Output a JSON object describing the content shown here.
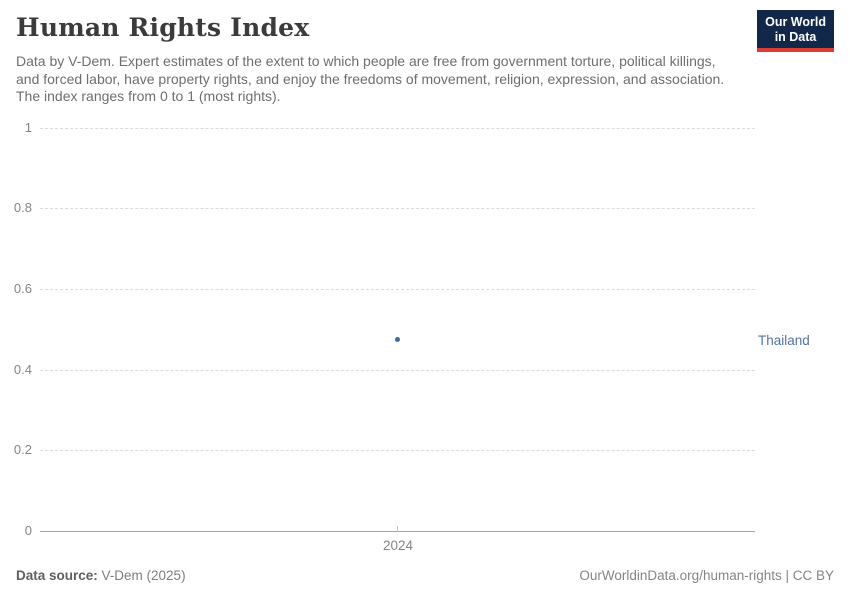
{
  "header": {
    "title": "Human Rights Index",
    "subtitle": "Data by V-Dem. Expert estimates of the extent to which people are free from government torture, political killings, and forced labor, have property rights, and enjoy the freedoms of movement, religion, expression, and association. The index ranges from 0 to 1 (most rights).",
    "logo": {
      "line1": "Our World",
      "line2": "in Data",
      "bg_color": "#12284b",
      "accent_color": "#dc3c31"
    }
  },
  "chart": {
    "y_ticks": [
      "1",
      "0.8",
      "0.6",
      "0.4",
      "0.2",
      "0"
    ],
    "x_tick": "2024",
    "entity_label": "Thailand",
    "point_color": "#3d6ba3",
    "entity_label_color": "#54739f",
    "gridline_color": "#dcdcdc",
    "axis_color": "#a3a3a3"
  },
  "chart_data": {
    "type": "scatter",
    "title": "Human Rights Index",
    "subtitle": "Data by V-Dem. Expert estimates of the extent to which people are free from government torture, political killings, and forced labor, have property rights, and enjoy the freedoms of movement, religion, expression, and association. The index ranges from 0 to 1 (most rights).",
    "series": [
      {
        "name": "Thailand",
        "x": [
          2024
        ],
        "y": [
          0.47
        ]
      }
    ],
    "xlabel": "",
    "ylabel": "",
    "x_tick_labels": [
      "2024"
    ],
    "y_tick_values": [
      0,
      0.2,
      0.4,
      0.6,
      0.8,
      1
    ],
    "ylim": [
      0,
      1
    ],
    "grid": "horizontal-dashed",
    "legend_position": "entity label at right edge"
  },
  "footer": {
    "source_label": "Data source:",
    "source_value": " V-Dem (2025)",
    "rights": "OurWorldinData.org/human-rights | CC BY"
  }
}
